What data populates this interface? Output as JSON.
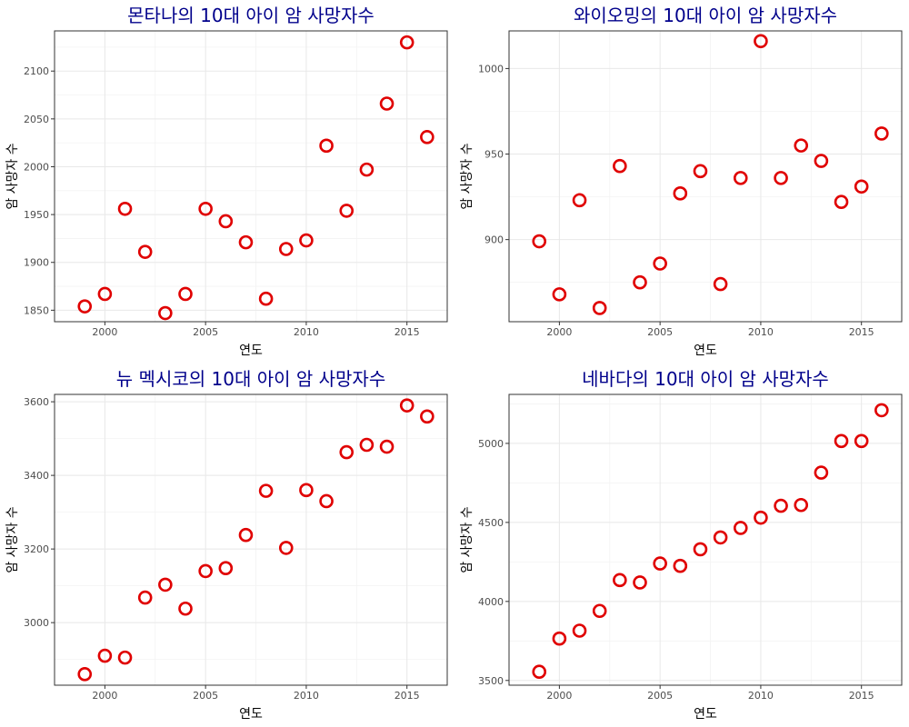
{
  "colors": {
    "point": "#E00000",
    "title": "#00008B"
  },
  "chart_data": [
    {
      "type": "scatter",
      "title": "몬타나의 10대 아이 암 사망자수",
      "xlabel": "연도",
      "ylabel": "암 사망자 수",
      "xlim": [
        1997.5,
        2017
      ],
      "ylim": [
        1838,
        2142
      ],
      "xticks": [
        2000,
        2005,
        2010,
        2015
      ],
      "yticks": [
        1850,
        1900,
        1950,
        2000,
        2050,
        2100
      ],
      "x": [
        1999,
        2000,
        2001,
        2002,
        2003,
        2004,
        2005,
        2006,
        2007,
        2008,
        2009,
        2010,
        2011,
        2012,
        2013,
        2014,
        2015,
        2016
      ],
      "y": [
        1854,
        1867,
        1956,
        1911,
        1847,
        1867,
        1956,
        1943,
        1921,
        1862,
        1914,
        1923,
        2022,
        1954,
        1997,
        2066,
        2130,
        2031
      ],
      "grid": true
    },
    {
      "type": "scatter",
      "title": "와이오밍의 10대 아이 암 사망자수",
      "xlabel": "연도",
      "ylabel": "암 사망자 수",
      "xlim": [
        1997.5,
        2017
      ],
      "ylim": [
        852,
        1022
      ],
      "xticks": [
        2000,
        2005,
        2010,
        2015
      ],
      "yticks": [
        900,
        950,
        1000
      ],
      "x": [
        1999,
        2000,
        2001,
        2002,
        2003,
        2004,
        2005,
        2006,
        2007,
        2008,
        2009,
        2010,
        2011,
        2012,
        2013,
        2014,
        2015,
        2016
      ],
      "y": [
        899,
        868,
        923,
        860,
        943,
        875,
        886,
        927,
        940,
        874,
        936,
        1016,
        936,
        955,
        946,
        922,
        931,
        962
      ],
      "grid": true
    },
    {
      "type": "scatter",
      "title": "뉴 멕시코의 10대 아이 암 사망자수",
      "xlabel": "연도",
      "ylabel": "암 사망자 수",
      "xlim": [
        1997.5,
        2017
      ],
      "ylim": [
        2830,
        3620
      ],
      "xticks": [
        2000,
        2005,
        2010,
        2015
      ],
      "yticks": [
        3000,
        3200,
        3400,
        3600
      ],
      "x": [
        1999,
        2000,
        2001,
        2002,
        2003,
        2004,
        2005,
        2006,
        2007,
        2008,
        2009,
        2010,
        2011,
        2012,
        2013,
        2014,
        2015,
        2016
      ],
      "y": [
        2860,
        2910,
        2905,
        3068,
        3103,
        3038,
        3140,
        3148,
        3238,
        3358,
        3203,
        3360,
        3330,
        3463,
        3483,
        3478,
        3590,
        3560
      ],
      "grid": true
    },
    {
      "type": "scatter",
      "title": "네바다의 10대 아이 암 사망자수",
      "xlabel": "연도",
      "ylabel": "암 사망자 수",
      "xlim": [
        1997.5,
        2017
      ],
      "ylim": [
        3470,
        5310
      ],
      "xticks": [
        2000,
        2005,
        2010,
        2015
      ],
      "yticks": [
        3500,
        4000,
        4500,
        5000
      ],
      "x": [
        1999,
        2000,
        2001,
        2002,
        2003,
        2004,
        2005,
        2006,
        2007,
        2008,
        2009,
        2010,
        2011,
        2012,
        2013,
        2014,
        2015,
        2016
      ],
      "y": [
        3555,
        3765,
        3815,
        3940,
        4135,
        4120,
        4240,
        4225,
        4330,
        4405,
        4465,
        4530,
        4605,
        4610,
        4815,
        5015,
        5015,
        5210
      ],
      "grid": true
    }
  ]
}
